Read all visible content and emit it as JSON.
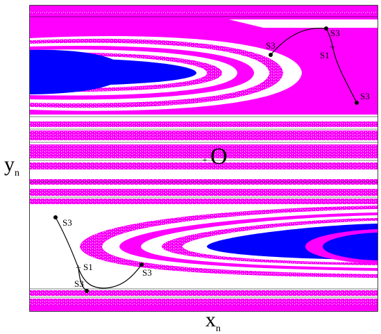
{
  "axes": {
    "xlabel": "x",
    "xlabel_sub": "n",
    "ylabel": "y",
    "ylabel_sub": "n"
  },
  "center_label": "O",
  "center_marker": "+",
  "colors": {
    "background": "#ffffff",
    "magenta": "#ff00ff",
    "blue": "#0000ff",
    "black": "#000000"
  },
  "annotations": {
    "s3_a": "S3",
    "s3_b": "S3",
    "s3_c": "S3",
    "s1_upper": "S1",
    "s3_d": "S3",
    "s3_e": "S3",
    "s1_lower": "S1",
    "s3_f": "S3"
  }
}
